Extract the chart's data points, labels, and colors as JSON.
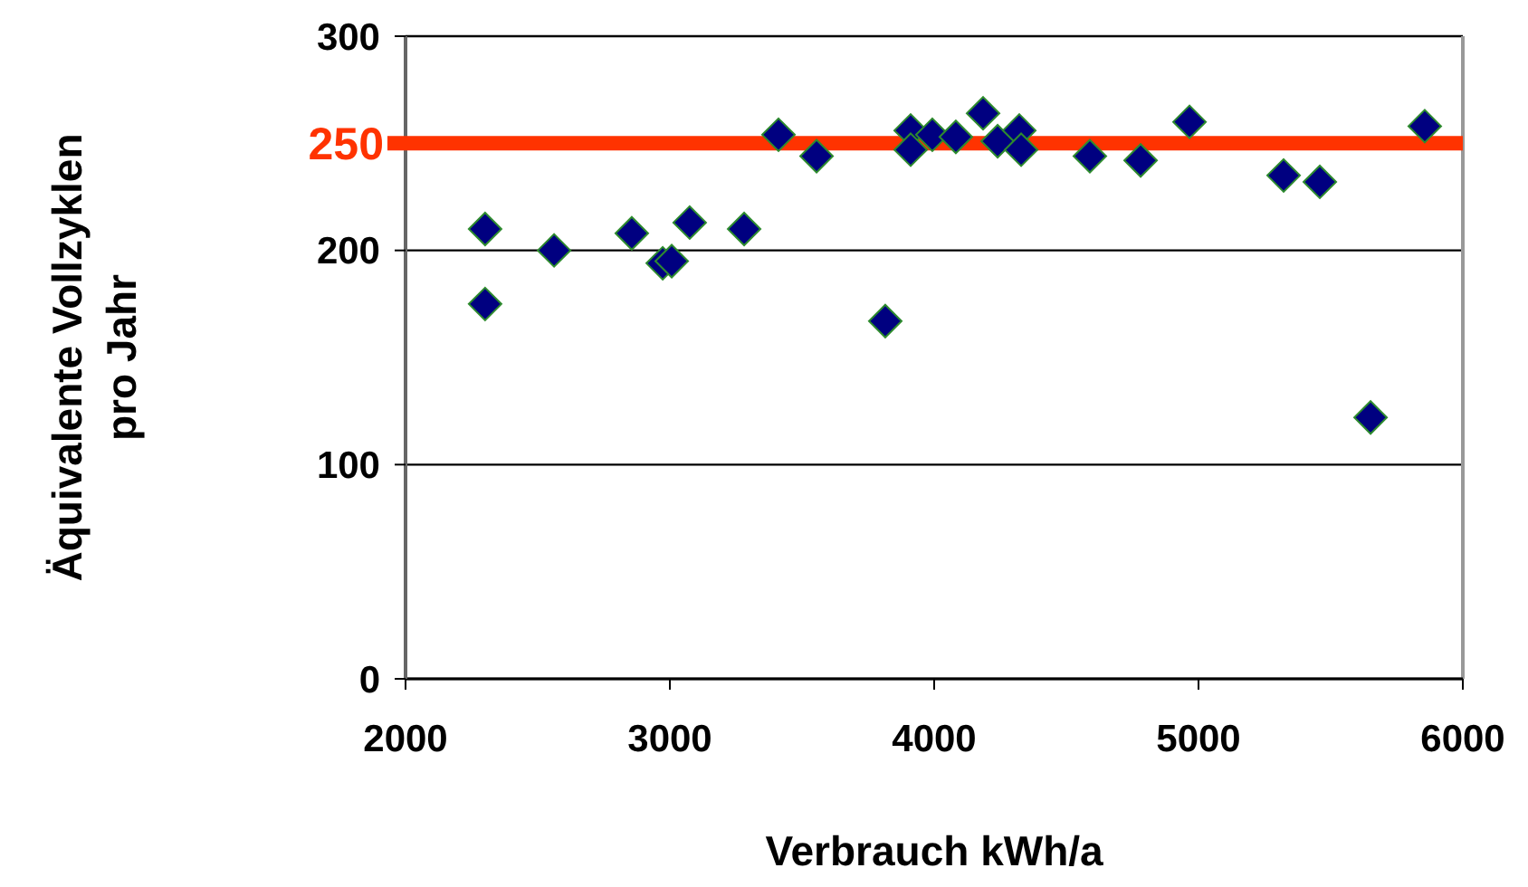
{
  "chart_data": {
    "type": "scatter",
    "xlabel": "Verbrauch kWh/a",
    "ylabel": "Äquivalente Vollzyklen\npro Jahr",
    "x": [
      2301,
      2301,
      2562,
      2856,
      2973,
      3007,
      3075,
      3281,
      3411,
      3555,
      3815,
      3911,
      3911,
      3993,
      4082,
      4185,
      4240,
      4322,
      4329,
      4589,
      4781,
      4966,
      5322,
      5459,
      5651,
      5856
    ],
    "series": [
      {
        "color": "#000080",
        "values": [
          210,
          175,
          200,
          208,
          194,
          195,
          213,
          210,
          254,
          244,
          167,
          256,
          247,
          254,
          253,
          264,
          251,
          256,
          247,
          244,
          242,
          260,
          235,
          232,
          122,
          258
        ]
      }
    ],
    "marker": "diamond",
    "xlim": [
      2000,
      6000
    ],
    "xticks": [
      2000,
      3000,
      4000,
      5000,
      6000
    ],
    "ylim": [
      0,
      300
    ],
    "yticks": [
      0,
      100,
      200,
      300
    ],
    "grid": "y",
    "ref_lines": [
      {
        "axis": "y",
        "value": 250,
        "label": "250",
        "color": "#ff3300"
      }
    ]
  }
}
